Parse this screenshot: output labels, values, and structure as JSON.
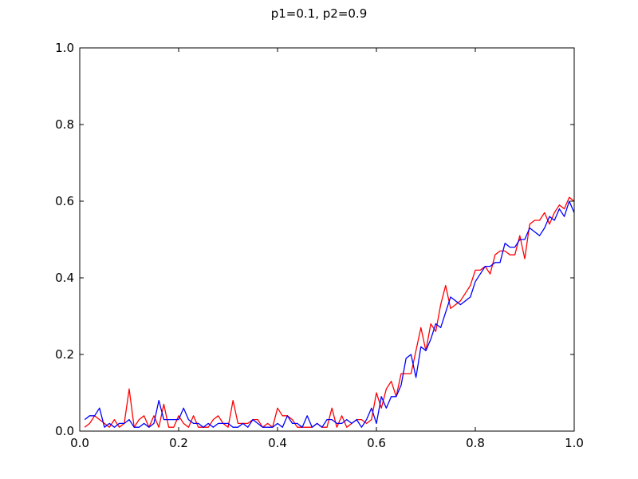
{
  "chart_data": {
    "type": "line",
    "title": "p1=0.1, p2=0.9",
    "xlabel": "",
    "ylabel": "",
    "xlim": [
      0.0,
      1.0
    ],
    "ylim": [
      0.0,
      1.0
    ],
    "x_ticks": [
      "0.0",
      "0.2",
      "0.4",
      "0.6",
      "0.8",
      "1.0"
    ],
    "y_ticks": [
      "0.0",
      "0.2",
      "0.4",
      "0.6",
      "0.8",
      "1.0"
    ],
    "grid": false,
    "legend": false,
    "x": [
      0.01,
      0.02,
      0.03,
      0.04,
      0.05,
      0.06,
      0.07,
      0.08,
      0.09,
      0.1,
      0.11,
      0.12,
      0.13,
      0.14,
      0.15,
      0.16,
      0.17,
      0.18,
      0.19,
      0.2,
      0.21,
      0.22,
      0.23,
      0.24,
      0.25,
      0.26,
      0.27,
      0.28,
      0.29,
      0.3,
      0.31,
      0.32,
      0.33,
      0.34,
      0.35,
      0.36,
      0.37,
      0.38,
      0.39,
      0.4,
      0.41,
      0.42,
      0.43,
      0.44,
      0.45,
      0.46,
      0.47,
      0.48,
      0.49,
      0.5,
      0.51,
      0.52,
      0.53,
      0.54,
      0.55,
      0.56,
      0.57,
      0.58,
      0.59,
      0.6,
      0.61,
      0.62,
      0.63,
      0.64,
      0.65,
      0.66,
      0.67,
      0.68,
      0.69,
      0.7,
      0.71,
      0.72,
      0.73,
      0.74,
      0.75,
      0.76,
      0.77,
      0.78,
      0.79,
      0.8,
      0.81,
      0.82,
      0.83,
      0.84,
      0.85,
      0.86,
      0.87,
      0.88,
      0.89,
      0.9,
      0.91,
      0.92,
      0.93,
      0.94,
      0.95,
      0.96,
      0.97,
      0.98,
      0.99,
      1.0
    ],
    "series": [
      {
        "color": "#ff0000",
        "values": [
          0.01,
          0.02,
          0.04,
          0.03,
          0.02,
          0.01,
          0.03,
          0.01,
          0.02,
          0.11,
          0.01,
          0.03,
          0.04,
          0.01,
          0.04,
          0.01,
          0.07,
          0.01,
          0.01,
          0.04,
          0.02,
          0.01,
          0.04,
          0.01,
          0.01,
          0.01,
          0.03,
          0.04,
          0.02,
          0.01,
          0.08,
          0.02,
          0.02,
          0.02,
          0.03,
          0.03,
          0.01,
          0.02,
          0.01,
          0.06,
          0.04,
          0.04,
          0.03,
          0.01,
          0.01,
          0.01,
          0.01,
          0.02,
          0.01,
          0.01,
          0.06,
          0.01,
          0.04,
          0.01,
          0.02,
          0.03,
          0.03,
          0.02,
          0.03,
          0.1,
          0.06,
          0.11,
          0.13,
          0.09,
          0.15,
          0.15,
          0.15,
          0.21,
          0.27,
          0.21,
          0.28,
          0.26,
          0.33,
          0.38,
          0.32,
          0.33,
          0.34,
          0.36,
          0.38,
          0.42,
          0.42,
          0.43,
          0.41,
          0.46,
          0.47,
          0.47,
          0.46,
          0.46,
          0.51,
          0.45,
          0.54,
          0.55,
          0.55,
          0.57,
          0.54,
          0.57,
          0.59,
          0.58,
          0.61,
          0.6
        ]
      },
      {
        "color": "#0000ff",
        "values": [
          0.03,
          0.04,
          0.04,
          0.06,
          0.01,
          0.02,
          0.01,
          0.02,
          0.02,
          0.03,
          0.01,
          0.01,
          0.02,
          0.01,
          0.02,
          0.08,
          0.03,
          0.03,
          0.03,
          0.03,
          0.06,
          0.03,
          0.02,
          0.02,
          0.01,
          0.02,
          0.01,
          0.02,
          0.02,
          0.02,
          0.01,
          0.01,
          0.02,
          0.01,
          0.03,
          0.02,
          0.01,
          0.01,
          0.01,
          0.02,
          0.01,
          0.04,
          0.02,
          0.02,
          0.01,
          0.04,
          0.01,
          0.02,
          0.01,
          0.03,
          0.03,
          0.02,
          0.02,
          0.03,
          0.02,
          0.03,
          0.01,
          0.03,
          0.06,
          0.02,
          0.09,
          0.06,
          0.09,
          0.09,
          0.12,
          0.19,
          0.2,
          0.14,
          0.22,
          0.21,
          0.24,
          0.28,
          0.27,
          0.31,
          0.35,
          0.34,
          0.33,
          0.34,
          0.35,
          0.39,
          0.41,
          0.43,
          0.43,
          0.44,
          0.44,
          0.49,
          0.48,
          0.48,
          0.5,
          0.5,
          0.53,
          0.52,
          0.51,
          0.53,
          0.56,
          0.55,
          0.58,
          0.56,
          0.6,
          0.57
        ]
      }
    ]
  }
}
